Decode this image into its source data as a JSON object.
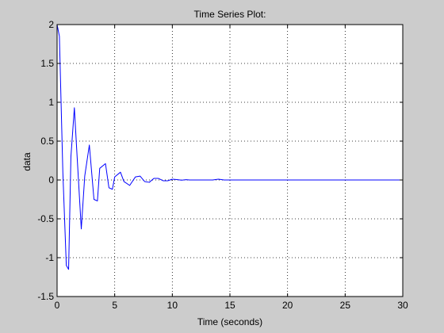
{
  "chart_data": {
    "type": "line",
    "title": "Time Series Plot:",
    "xlabel": "Time (seconds)",
    "ylabel": "data",
    "xlim": [
      0,
      30
    ],
    "ylim": [
      -1.5,
      2
    ],
    "grid": true,
    "xticks": [
      0,
      5,
      10,
      15,
      20,
      25,
      30
    ],
    "yticks": [
      -1.5,
      -1,
      -0.5,
      0,
      0.5,
      1,
      1.5,
      2
    ],
    "series": [
      {
        "color": "#0000ff",
        "x": [
          0,
          0.2,
          0.5,
          0.8,
          1.0,
          1.2,
          1.5,
          1.7,
          2.1,
          2.4,
          2.8,
          3.2,
          3.5,
          3.7,
          4.2,
          4.5,
          4.8,
          5.0,
          5.5,
          5.8,
          6.3,
          6.8,
          7.2,
          7.6,
          8.0,
          8.4,
          8.8,
          9.2,
          9.6,
          10.0,
          10.4,
          10.8,
          11.2,
          11.5,
          12.0,
          12.5,
          13.0,
          13.5,
          14.0,
          14.5,
          15.0,
          20.0,
          25.0,
          30.0
        ],
        "y": [
          2.0,
          1.85,
          0.1,
          -1.1,
          -1.15,
          0.3,
          0.93,
          0.4,
          -0.63,
          0.05,
          0.45,
          -0.25,
          -0.27,
          0.15,
          0.21,
          -0.1,
          -0.12,
          0.04,
          0.1,
          -0.02,
          -0.07,
          0.04,
          0.05,
          -0.02,
          -0.03,
          0.02,
          0.02,
          -0.01,
          -0.01,
          0.01,
          0.005,
          -0.003,
          0.004,
          0.0,
          0.0,
          0.0,
          0.0,
          0.0,
          0.01,
          0.0,
          0.0,
          0.0,
          0.0,
          0.0
        ]
      }
    ]
  }
}
